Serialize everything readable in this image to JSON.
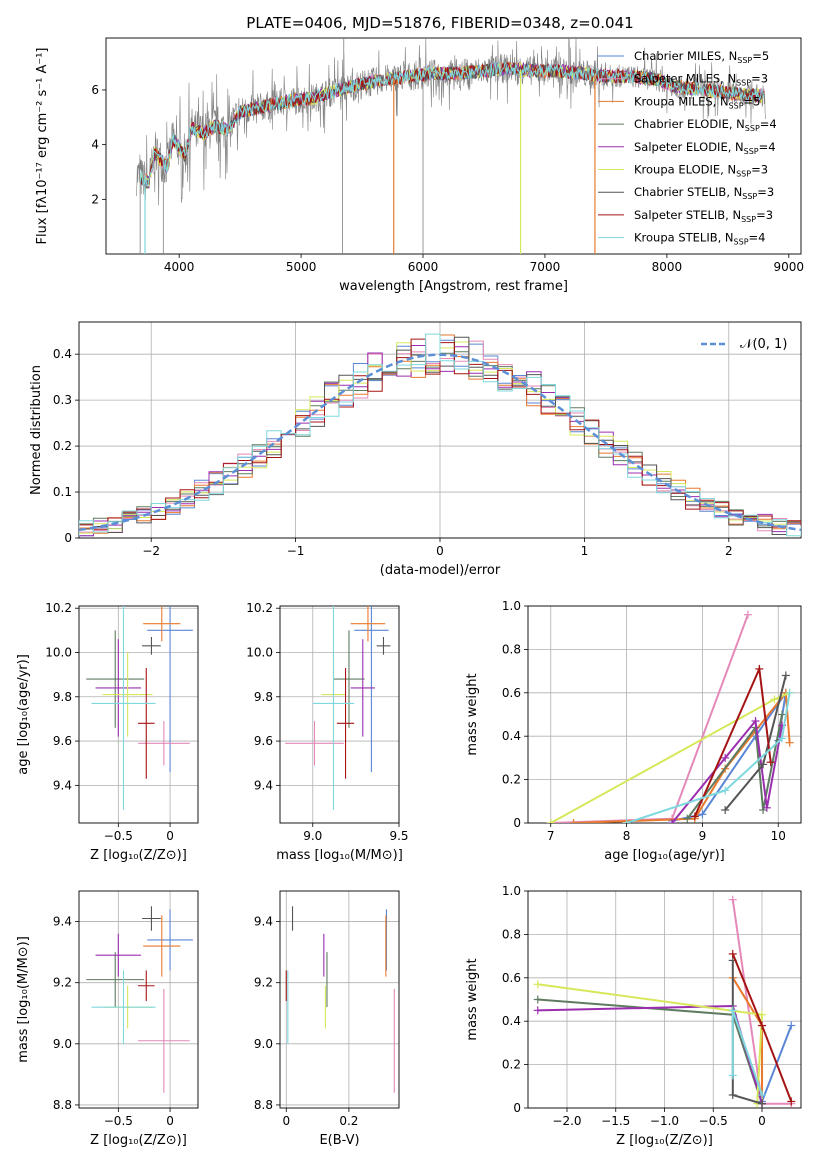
{
  "figure_title": "PLATE=0406, MJD=51876, FIBERID=0348, z=0.041",
  "colors": {
    "Chabrier MILES": "#5b86d6",
    "Salpeter MILES": "#e489b9",
    "Kroupa MILES": "#e8792d",
    "Chabrier ELODIE": "#5e7b60",
    "Salpeter ELODIE": "#9b2eaf",
    "Kroupa ELODIE": "#d6e85a",
    "Chabrier STELIB": "#555555",
    "Salpeter STELIB": "#a51414",
    "Kroupa STELIB": "#7fd8de",
    "data": "#808080",
    "normal": "#5b8fd6"
  },
  "chart_data": [
    {
      "id": "spectrum",
      "type": "line",
      "xlabel": "wavelength [Angstrom, rest frame]",
      "ylabel": "Flux [fλ10⁻¹⁷ erg cm⁻² s⁻¹ A⁻¹]",
      "xlim": [
        3400,
        9100
      ],
      "ylim": [
        0,
        7.9
      ],
      "xticks": [
        4000,
        5000,
        6000,
        7000,
        8000,
        9000
      ],
      "yticks": [
        2,
        4,
        6
      ],
      "legend_position": "top-right",
      "grid": false,
      "data_continuum": [
        [
          3650,
          2.9
        ],
        [
          3750,
          2.6
        ],
        [
          3800,
          3.7
        ],
        [
          3900,
          3.2
        ],
        [
          3950,
          4.2
        ],
        [
          4050,
          3.6
        ],
        [
          4100,
          4.6
        ],
        [
          4200,
          4.4
        ],
        [
          4300,
          4.7
        ],
        [
          4400,
          4.5
        ],
        [
          4500,
          5.2
        ],
        [
          4700,
          5.4
        ],
        [
          4900,
          5.6
        ],
        [
          5100,
          5.7
        ],
        [
          5300,
          6.0
        ],
        [
          5500,
          6.2
        ],
        [
          5700,
          6.4
        ],
        [
          5900,
          6.5
        ],
        [
          6100,
          6.6
        ],
        [
          6300,
          6.6
        ],
        [
          6500,
          6.7
        ],
        [
          6700,
          6.8
        ],
        [
          6900,
          6.7
        ],
        [
          7100,
          6.7
        ],
        [
          7300,
          6.6
        ],
        [
          7500,
          6.5
        ],
        [
          7700,
          6.5
        ],
        [
          7900,
          6.4
        ],
        [
          8100,
          6.1
        ],
        [
          8300,
          6.0
        ],
        [
          8500,
          5.9
        ],
        [
          8700,
          5.8
        ],
        [
          8810,
          5.8
        ]
      ],
      "series": [
        {
          "name": "Chabrier MILES, N_SSP=5"
        },
        {
          "name": "Salpeter MILES, N_SSP=3"
        },
        {
          "name": "Kroupa MILES, N_SSP=5"
        },
        {
          "name": "Chabrier ELODIE, N_SSP=4"
        },
        {
          "name": "Salpeter ELODIE, N_SSP=4"
        },
        {
          "name": "Kroupa ELODIE, N_SSP=3"
        },
        {
          "name": "Chabrier STELIB, N_SSP=3"
        },
        {
          "name": "Salpeter STELIB, N_SSP=3"
        },
        {
          "name": "Kroupa STELIB, N_SSP=4"
        }
      ]
    },
    {
      "id": "residuals",
      "type": "histogram",
      "xlabel": "(data-model)/error",
      "ylabel": "Normed distribution",
      "xlim": [
        -2.5,
        2.5
      ],
      "ylim": [
        0,
        0.47
      ],
      "xticks": [
        -2,
        -1,
        0,
        1,
        2
      ],
      "yticks": [
        0.0,
        0.1,
        0.2,
        0.3,
        0.4
      ],
      "grid": true,
      "legend_position": "top-right",
      "legend": "𝒩(0, 1)",
      "bin_width": 0.1
    },
    {
      "id": "age-vs-Z",
      "type": "errorbar",
      "xlabel": "Z [log₁₀(Z/Z⊙)]",
      "ylabel": "age  [log₁₀(age/yr)]",
      "xlim": [
        -0.88,
        0.27
      ],
      "ylim": [
        9.23,
        10.21
      ],
      "xticks": [
        -0.5,
        0.0
      ],
      "yticks": [
        9.4,
        9.6,
        9.8,
        10.0,
        10.2
      ],
      "grid": true,
      "points": [
        {
          "model": "Chabrier MILES",
          "x": 0.0,
          "xerr": 0.22,
          "y": 10.1,
          "yerr": 0.64
        },
        {
          "model": "Salpeter MILES",
          "x": -0.06,
          "xerr": 0.25,
          "y": 9.59,
          "yerr": 0.1
        },
        {
          "model": "Kroupa MILES",
          "x": -0.08,
          "xerr": 0.18,
          "y": 10.13,
          "yerr": 0.08
        },
        {
          "model": "Chabrier ELODIE",
          "x": -0.53,
          "xerr": 0.28,
          "y": 9.88,
          "yerr": 0.22
        },
        {
          "model": "Salpeter ELODIE",
          "x": -0.5,
          "xerr": 0.22,
          "y": 9.84,
          "yerr": 0.22
        },
        {
          "model": "Kroupa ELODIE",
          "x": -0.41,
          "xerr": 0.24,
          "y": 9.81,
          "yerr": 0.19
        },
        {
          "model": "Chabrier STELIB",
          "x": -0.18,
          "xerr": 0.09,
          "y": 10.03,
          "yerr": 0.04
        },
        {
          "model": "Salpeter STELIB",
          "x": -0.23,
          "xerr": 0.08,
          "y": 9.68,
          "yerr": 0.25
        },
        {
          "model": "Kroupa STELIB",
          "x": -0.45,
          "xerr": 0.31,
          "y": 9.77,
          "yerr": 0.48
        }
      ]
    },
    {
      "id": "age-vs-mass",
      "type": "errorbar",
      "xlabel": "mass [log₁₀(M/M⊙)]",
      "xlim": [
        8.81,
        9.5
      ],
      "ylim": [
        9.23,
        10.21
      ],
      "xticks": [
        9.0,
        9.5
      ],
      "yticks": [
        9.4,
        9.6,
        9.8,
        10.0,
        10.2
      ],
      "grid": true,
      "points": [
        {
          "model": "Chabrier MILES",
          "x": 9.34,
          "xerr": 0.1,
          "y": 10.1,
          "yerr": 0.64
        },
        {
          "model": "Salpeter MILES",
          "x": 9.01,
          "xerr": 0.17,
          "y": 9.59,
          "yerr": 0.1
        },
        {
          "model": "Kroupa MILES",
          "x": 9.32,
          "xerr": 0.1,
          "y": 10.13,
          "yerr": 0.08
        },
        {
          "model": "Chabrier ELODIE",
          "x": 9.21,
          "xerr": 0.09,
          "y": 9.88,
          "yerr": 0.22
        },
        {
          "model": "Salpeter ELODIE",
          "x": 9.29,
          "xerr": 0.07,
          "y": 9.84,
          "yerr": 0.22
        },
        {
          "model": "Kroupa ELODIE",
          "x": 9.12,
          "xerr": 0.07,
          "y": 9.81,
          "yerr": 0.19
        },
        {
          "model": "Chabrier STELIB",
          "x": 9.41,
          "xerr": 0.04,
          "y": 10.03,
          "yerr": 0.04
        },
        {
          "model": "Salpeter STELIB",
          "x": 9.19,
          "xerr": 0.05,
          "y": 9.68,
          "yerr": 0.25
        },
        {
          "model": "Kroupa STELIB",
          "x": 9.12,
          "xerr": 0.12,
          "y": 9.77,
          "yerr": 0.48
        }
      ]
    },
    {
      "id": "weight-vs-age",
      "type": "line",
      "xlabel": "age  [log₁₀(age/yr)]",
      "ylabel": "mass weight",
      "xlim": [
        6.7,
        10.3
      ],
      "ylim": [
        0,
        1.0
      ],
      "xticks": [
        7,
        8,
        9,
        10
      ],
      "yticks": [
        0.0,
        0.2,
        0.4,
        0.6,
        0.8,
        1.0
      ],
      "grid": true,
      "series": [
        {
          "model": "Chabrier MILES",
          "points": [
            [
              8.6,
              0.01
            ],
            [
              9.0,
              0.04
            ],
            [
              9.7,
              0.4
            ],
            [
              10.1,
              0.6
            ],
            [
              10.0,
              0.38
            ]
          ]
        },
        {
          "model": "Salpeter MILES",
          "points": [
            [
              7.0,
              0.0
            ],
            [
              8.6,
              0.02
            ],
            [
              9.6,
              0.96
            ]
          ]
        },
        {
          "model": "Kroupa MILES",
          "points": [
            [
              7.3,
              0.0
            ],
            [
              8.9,
              0.02
            ],
            [
              9.3,
              0.25
            ],
            [
              10.1,
              0.6
            ],
            [
              10.15,
              0.37
            ]
          ]
        },
        {
          "model": "Chabrier ELODIE",
          "points": [
            [
              8.8,
              0.02
            ],
            [
              9.7,
              0.44
            ],
            [
              9.8,
              0.06
            ],
            [
              10.05,
              0.5
            ]
          ]
        },
        {
          "model": "Salpeter ELODIE",
          "points": [
            [
              8.6,
              0.0
            ],
            [
              9.3,
              0.3
            ],
            [
              9.7,
              0.47
            ],
            [
              9.85,
              0.07
            ],
            [
              10.05,
              0.45
            ]
          ]
        },
        {
          "model": "Kroupa ELODIE",
          "points": [
            [
              7.0,
              0.0
            ],
            [
              9.95,
              0.57
            ],
            [
              10.15,
              0.6
            ]
          ]
        },
        {
          "model": "Chabrier STELIB",
          "points": [
            [
              9.3,
              0.06
            ],
            [
              9.8,
              0.27
            ],
            [
              10.1,
              0.68
            ]
          ]
        },
        {
          "model": "Salpeter STELIB",
          "points": [
            [
              8.9,
              0.03
            ],
            [
              9.75,
              0.71
            ],
            [
              9.9,
              0.28
            ]
          ]
        },
        {
          "model": "Kroupa STELIB",
          "points": [
            [
              8.0,
              0.0
            ],
            [
              9.3,
              0.15
            ],
            [
              10.05,
              0.39
            ],
            [
              10.15,
              0.6
            ]
          ]
        }
      ]
    },
    {
      "id": "mass-vs-Z",
      "type": "errorbar",
      "xlabel": "Z [log₁₀(Z/Z⊙)]",
      "ylabel": "mass [log₁₀(M/M⊙)]",
      "xlim": [
        -0.88,
        0.27
      ],
      "ylim": [
        8.79,
        9.5
      ],
      "xticks": [
        -0.5,
        0.0
      ],
      "yticks": [
        8.8,
        9.0,
        9.2,
        9.4
      ],
      "grid": true,
      "points": [
        {
          "model": "Chabrier MILES",
          "x": 0.0,
          "xerr": 0.22,
          "y": 9.34,
          "yerr": 0.1
        },
        {
          "model": "Salpeter MILES",
          "x": -0.06,
          "xerr": 0.25,
          "y": 9.01,
          "yerr": 0.17
        },
        {
          "model": "Kroupa MILES",
          "x": -0.08,
          "xerr": 0.18,
          "y": 9.32,
          "yerr": 0.1
        },
        {
          "model": "Chabrier ELODIE",
          "x": -0.53,
          "xerr": 0.28,
          "y": 9.21,
          "yerr": 0.09
        },
        {
          "model": "Salpeter ELODIE",
          "x": -0.5,
          "xerr": 0.22,
          "y": 9.29,
          "yerr": 0.07
        },
        {
          "model": "Kroupa ELODIE",
          "x": -0.41,
          "xerr": 0.24,
          "y": 9.12,
          "yerr": 0.07
        },
        {
          "model": "Chabrier STELIB",
          "x": -0.18,
          "xerr": 0.09,
          "y": 9.41,
          "yerr": 0.04
        },
        {
          "model": "Salpeter STELIB",
          "x": -0.23,
          "xerr": 0.08,
          "y": 9.19,
          "yerr": 0.05
        },
        {
          "model": "Kroupa STELIB",
          "x": -0.45,
          "xerr": 0.31,
          "y": 9.12,
          "yerr": 0.12
        }
      ]
    },
    {
      "id": "mass-vs-ebv",
      "type": "errorbar",
      "xlabel": "E(B-V)",
      "xlim": [
        -0.02,
        0.36
      ],
      "ylim": [
        8.79,
        9.5
      ],
      "xticks": [
        0.0,
        0.2
      ],
      "yticks": [
        8.8,
        9.0,
        9.2,
        9.4
      ],
      "grid": true,
      "points": [
        {
          "model": "Chabrier MILES",
          "x": 0.32,
          "y": 9.34,
          "yerr": 0.1
        },
        {
          "model": "Salpeter MILES",
          "x": 0.345,
          "y": 9.01,
          "yerr": 0.17
        },
        {
          "model": "Kroupa MILES",
          "x": 0.318,
          "y": 9.32,
          "yerr": 0.1
        },
        {
          "model": "Chabrier ELODIE",
          "x": 0.13,
          "y": 9.21,
          "yerr": 0.09
        },
        {
          "model": "Salpeter ELODIE",
          "x": 0.12,
          "y": 9.29,
          "yerr": 0.07
        },
        {
          "model": "Kroupa ELODIE",
          "x": 0.125,
          "y": 9.12,
          "yerr": 0.07
        },
        {
          "model": "Chabrier STELIB",
          "x": 0.02,
          "y": 9.41,
          "yerr": 0.04
        },
        {
          "model": "Salpeter STELIB",
          "x": 0.0,
          "y": 9.19,
          "yerr": 0.05
        },
        {
          "model": "Kroupa STELIB",
          "x": 0.005,
          "y": 9.12,
          "yerr": 0.12
        }
      ]
    },
    {
      "id": "weight-vs-Z",
      "type": "line",
      "xlabel": "Z [log₁₀(Z/Z⊙)]",
      "ylabel": "mass weight",
      "xlim": [
        -2.4,
        0.4
      ],
      "ylim": [
        0,
        1.0
      ],
      "xticks": [
        -2.0,
        -1.5,
        -1.0,
        -0.5,
        0.0
      ],
      "yticks": [
        0.0,
        0.2,
        0.4,
        0.6,
        0.8,
        1.0
      ],
      "grid": true,
      "series": [
        {
          "model": "Chabrier MILES",
          "points": [
            [
              -0.3,
              0.43
            ],
            [
              0.0,
              0.03
            ],
            [
              0.3,
              0.38
            ]
          ]
        },
        {
          "model": "Salpeter MILES",
          "points": [
            [
              -0.3,
              0.96
            ],
            [
              0.0,
              0.02
            ],
            [
              0.3,
              0.02
            ]
          ]
        },
        {
          "model": "Kroupa MILES",
          "points": [
            [
              -0.3,
              0.6
            ],
            [
              0.0,
              0.38
            ],
            [
              0.0,
              0.02
            ]
          ]
        },
        {
          "model": "Chabrier ELODIE",
          "points": [
            [
              -2.3,
              0.5
            ],
            [
              -0.3,
              0.43
            ],
            [
              0.0,
              0.02
            ]
          ]
        },
        {
          "model": "Salpeter ELODIE",
          "points": [
            [
              -2.3,
              0.45
            ],
            [
              -0.3,
              0.47
            ],
            [
              0.0,
              0.02
            ]
          ]
        },
        {
          "model": "Kroupa ELODIE",
          "points": [
            [
              -2.3,
              0.57
            ],
            [
              0.0,
              0.43
            ],
            [
              -0.05,
              0.02
            ]
          ]
        },
        {
          "model": "Chabrier STELIB",
          "points": [
            [
              -0.3,
              0.68
            ],
            [
              -0.3,
              0.06
            ],
            [
              0.0,
              0.02
            ]
          ]
        },
        {
          "model": "Salpeter STELIB",
          "points": [
            [
              -0.3,
              0.71
            ],
            [
              0.0,
              0.38
            ],
            [
              0.3,
              0.03
            ]
          ]
        },
        {
          "model": "Kroupa STELIB",
          "points": [
            [
              -0.3,
              0.15
            ],
            [
              -0.3,
              0.45
            ],
            [
              0.0,
              0.06
            ]
          ]
        }
      ]
    }
  ]
}
